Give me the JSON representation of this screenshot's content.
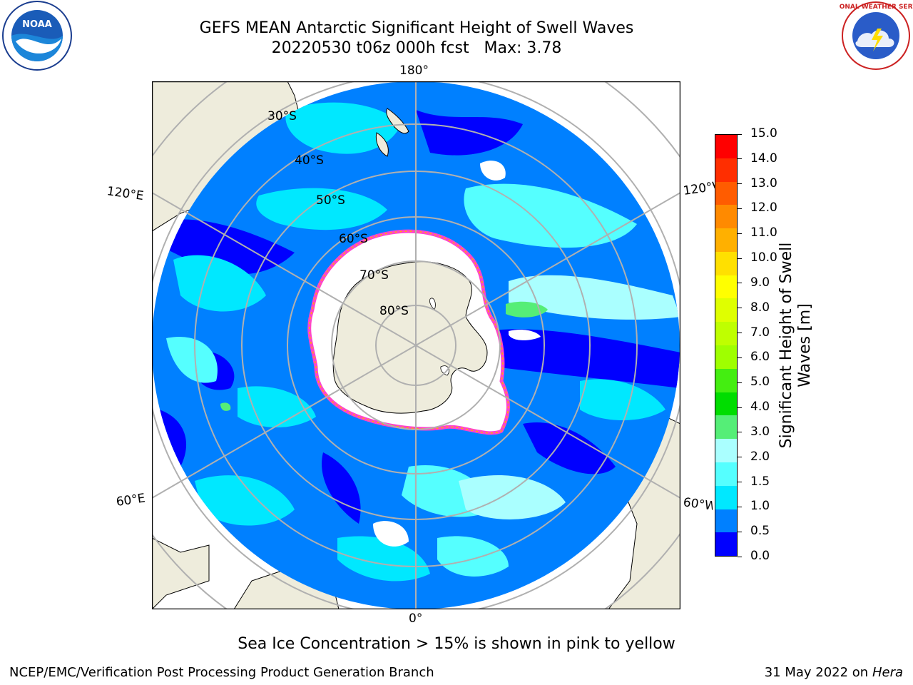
{
  "header": {
    "title_line1": "GEFS MEAN Antarctic Significant Height of Swell Waves",
    "title_line2": "20220530 t06z 000h fcst   Max: 3.78"
  },
  "logos": {
    "left": "NOAA",
    "right": "NATIONAL WEATHER SERVICE"
  },
  "map": {
    "longitude_labels": {
      "top": "180°",
      "bottom": "0°",
      "left_upper": "120°E",
      "left_lower": "60°E",
      "right_upper": "120°W",
      "right_lower": "60°W"
    },
    "latitude_labels": [
      "30°S",
      "40°S",
      "50°S",
      "60°S",
      "70°S",
      "80°S"
    ],
    "colors": {
      "land": "#eeecdc",
      "ice": "#ffffff",
      "ice_edge": [
        "#ff44cc",
        "#ffb000"
      ],
      "grid": "#b0b0b0"
    }
  },
  "colorbar": {
    "label_line1": "Significant Height of Swell",
    "label_line2": "Waves [m]",
    "ticks": [
      "15.0",
      "14.0",
      "13.0",
      "12.0",
      "11.0",
      "10.0",
      "9.0",
      "8.0",
      "7.0",
      "6.0",
      "5.0",
      "4.0",
      "3.0",
      "2.0",
      "1.5",
      "1.0",
      "0.5",
      "0.0"
    ],
    "bands_top_to_bottom": [
      "#ff0000",
      "#ff2e00",
      "#ff5c00",
      "#ff8a00",
      "#ffb000",
      "#ffe000",
      "#ffff00",
      "#dfff00",
      "#bfff00",
      "#9fff00",
      "#44ee11",
      "#00dd00",
      "#55ee77",
      "#aaffff",
      "#55ffff",
      "#00e8ff",
      "#0080ff",
      "#0000ff"
    ]
  },
  "sea_ice_note": "Sea Ice Concentration > 15% is shown in pink to yellow",
  "footer": {
    "left": "NCEP/EMC/Verification Post Processing Product Generation Branch",
    "right_date": "31 May 2022 on",
    "right_machine": "Hera"
  }
}
